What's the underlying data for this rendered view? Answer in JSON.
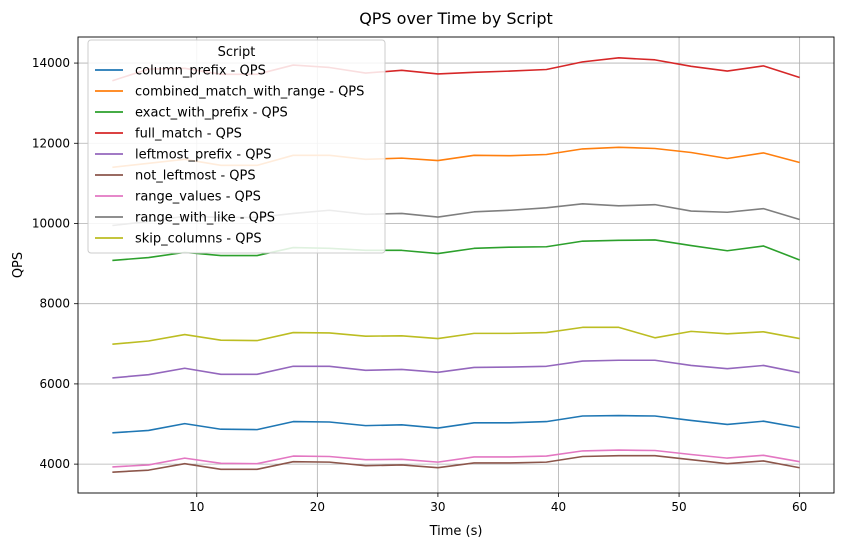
{
  "chart_data": {
    "type": "line",
    "title": "QPS over Time by Script",
    "xlabel": "Time (s)",
    "ylabel": "QPS",
    "xlim": [
      0.15,
      62.85
    ],
    "ylim": [
      3280,
      14650
    ],
    "xticks": [
      10,
      20,
      30,
      40,
      50,
      60
    ],
    "yticks": [
      4000,
      6000,
      8000,
      10000,
      12000,
      14000
    ],
    "grid": true,
    "legend_title": "Script",
    "legend_position": "top-left",
    "x": [
      3,
      6,
      9,
      12,
      15,
      18,
      21,
      24,
      27,
      30,
      33,
      36,
      39,
      42,
      45,
      48,
      51,
      54,
      57,
      60
    ],
    "series": [
      {
        "name": "column_prefix - QPS",
        "color": "#1f77b4",
        "values": [
          4780,
          4840,
          5010,
          4870,
          4860,
          5060,
          5050,
          4960,
          4980,
          4900,
          5030,
          5030,
          5060,
          5200,
          5210,
          5200,
          5090,
          4990,
          5070,
          4910
        ]
      },
      {
        "name": "combined_match_with_range - QPS",
        "color": "#ff7f0e",
        "values": [
          11400,
          11500,
          11600,
          11450,
          11450,
          11700,
          11700,
          11600,
          11630,
          11570,
          11700,
          11690,
          11720,
          11860,
          11900,
          11870,
          11770,
          11620,
          11760,
          11520
        ]
      },
      {
        "name": "exact_with_prefix - QPS",
        "color": "#2ca02c",
        "values": [
          9080,
          9150,
          9280,
          9200,
          9200,
          9400,
          9380,
          9330,
          9330,
          9250,
          9380,
          9410,
          9420,
          9560,
          9580,
          9590,
          9450,
          9320,
          9440,
          9090
        ]
      },
      {
        "name": "full_match - QPS",
        "color": "#d62728",
        "values": [
          13560,
          13850,
          13870,
          13720,
          13720,
          13950,
          13890,
          13750,
          13820,
          13730,
          13770,
          13800,
          13840,
          14030,
          14130,
          14080,
          13920,
          13800,
          13930,
          13640
        ]
      },
      {
        "name": "leftmost_prefix - QPS",
        "color": "#9467bd",
        "values": [
          6150,
          6230,
          6390,
          6240,
          6240,
          6440,
          6440,
          6340,
          6360,
          6290,
          6410,
          6420,
          6440,
          6570,
          6590,
          6590,
          6460,
          6380,
          6460,
          6280
        ]
      },
      {
        "name": "not_leftmost - QPS",
        "color": "#8c564b",
        "values": [
          3800,
          3850,
          4010,
          3870,
          3870,
          4060,
          4050,
          3960,
          3980,
          3910,
          4030,
          4030,
          4050,
          4190,
          4210,
          4210,
          4110,
          4010,
          4080,
          3910
        ]
      },
      {
        "name": "range_values - QPS",
        "color": "#e377c2",
        "values": [
          3930,
          3980,
          4150,
          4020,
          4010,
          4200,
          4190,
          4110,
          4120,
          4050,
          4180,
          4180,
          4200,
          4330,
          4350,
          4340,
          4240,
          4150,
          4220,
          4060
        ]
      },
      {
        "name": "range_with_like - QPS",
        "color": "#7f7f7f",
        "values": [
          9950,
          10050,
          10180,
          10150,
          10150,
          10250,
          10330,
          10230,
          10250,
          10160,
          10290,
          10330,
          10390,
          10490,
          10440,
          10470,
          10310,
          10280,
          10370,
          10100
        ]
      },
      {
        "name": "skip_columns - QPS",
        "color": "#bcbd22",
        "values": [
          6990,
          7070,
          7230,
          7090,
          7080,
          7280,
          7270,
          7190,
          7200,
          7130,
          7260,
          7260,
          7280,
          7410,
          7410,
          7150,
          7310,
          7250,
          7300,
          7130
        ]
      }
    ]
  }
}
